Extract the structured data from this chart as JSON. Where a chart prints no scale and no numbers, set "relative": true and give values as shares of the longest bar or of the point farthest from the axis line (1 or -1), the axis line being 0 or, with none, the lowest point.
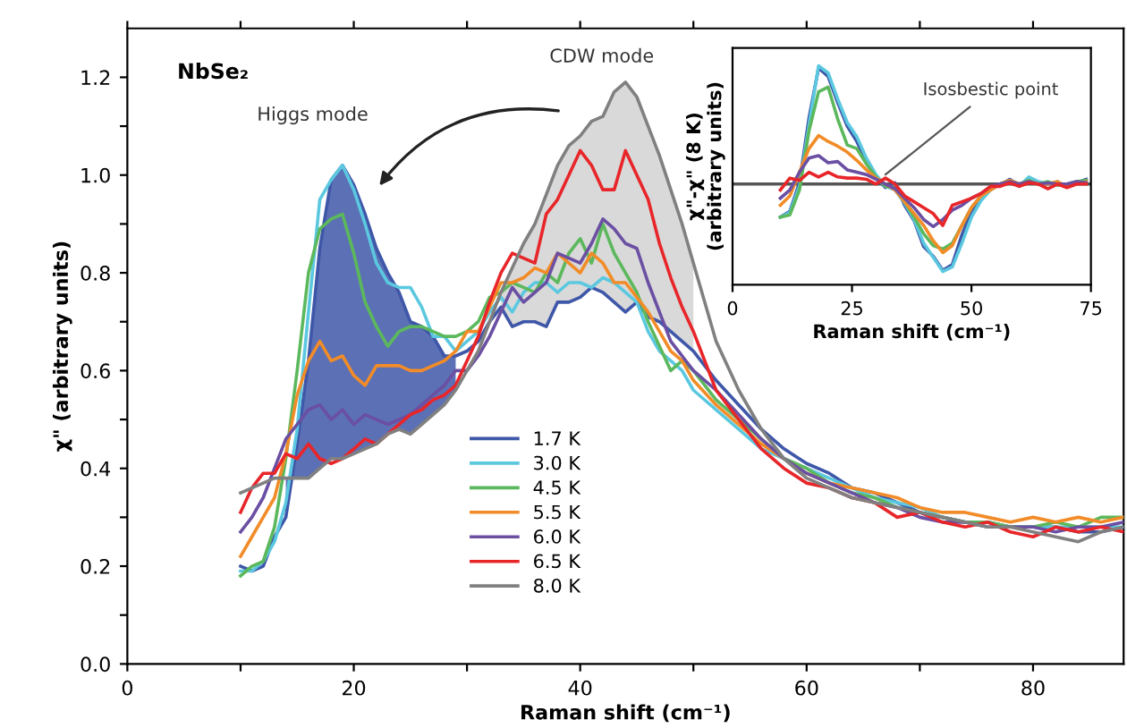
{
  "chart_data": [
    {
      "type": "line",
      "xlabel": "Raman shift (cm⁻¹)",
      "ylabel": "χ\" (arbitrary units)",
      "xlim": [
        0,
        88
      ],
      "ylim": [
        0,
        1.3
      ],
      "xticks": [
        0,
        {
          "value": 10,
          "label": null
        },
        20,
        {
          "value": 30,
          "label": null
        },
        40,
        {
          "value": 50,
          "label": null
        },
        60,
        {
          "value": 70,
          "label": null
        },
        80
      ],
      "yticks": [
        {
          "value": 0,
          "label": "0.0"
        },
        {
          "value": 0.1,
          "label": null
        },
        {
          "value": 0.2,
          "label": "0.2"
        },
        {
          "value": 0.3,
          "label": null
        },
        {
          "value": 0.4,
          "label": "0.4"
        },
        {
          "value": 0.5,
          "label": null
        },
        {
          "value": 0.6,
          "label": "0.6"
        },
        {
          "value": 0.7,
          "label": null
        },
        {
          "value": 0.8,
          "label": "0.8"
        },
        {
          "value": 0.9,
          "label": null
        },
        {
          "value": 1.0,
          "label": "1.0"
        },
        {
          "value": 1.1,
          "label": null
        },
        {
          "value": 1.2,
          "label": "1.2"
        }
      ],
      "grid": false,
      "legend": "bottom",
      "marker": "none",
      "line_style": "solid",
      "annotations": [
        "NbSe₂",
        {
          "text": "Higgs mode",
          "x": 19,
          "y": 1.02
        },
        {
          "text": "CDW mode",
          "x": 43,
          "y": 1.19
        }
      ],
      "x": [
        10,
        11,
        12,
        13,
        14,
        15,
        16,
        17,
        18,
        19,
        20,
        21,
        22,
        23,
        24,
        25,
        26,
        27,
        28,
        29,
        30,
        31,
        32,
        33,
        34,
        35,
        36,
        37,
        38,
        39,
        40,
        41,
        42,
        43,
        44,
        45,
        46,
        47,
        48,
        49,
        50,
        52,
        54,
        56,
        58,
        60,
        62,
        64,
        66,
        68,
        70,
        72,
        74,
        76,
        78,
        80,
        82,
        84,
        86,
        88
      ],
      "series": [
        {
          "name": "1.7 K",
          "color": "#3f57a8",
          "lower": [
            null,
            null,
            null,
            null,
            0.38,
            0.38,
            0.38,
            0.4,
            0.42,
            0.42,
            0.43,
            0.44,
            0.45,
            0.47,
            0.48,
            0.47,
            0.49,
            0.51,
            0.53,
            0.56,
            null,
            null,
            null,
            null,
            null,
            null,
            null,
            null,
            null,
            null,
            null,
            null,
            null,
            null,
            null,
            null,
            null,
            null,
            null,
            null,
            null,
            null,
            null,
            null,
            null,
            null,
            null,
            null,
            null,
            null,
            null,
            null,
            null,
            null,
            null,
            null,
            null,
            null,
            null,
            null
          ],
          "upper": [
            null,
            null,
            null,
            null,
            0.3,
            0.45,
            0.62,
            0.85,
            0.99,
            1.02,
            0.98,
            0.92,
            0.85,
            0.8,
            0.76,
            0.7,
            0.69,
            0.67,
            0.63,
            0.63,
            null,
            null,
            null,
            null,
            null,
            null,
            null,
            null,
            null,
            null,
            null,
            null,
            null,
            null,
            null,
            null,
            null,
            null,
            null,
            null,
            null,
            null,
            null,
            null,
            null,
            null,
            null,
            null,
            null,
            null,
            null,
            null,
            null,
            null,
            null,
            null,
            null,
            null,
            null,
            null
          ],
          "values": [
            0.2,
            0.19,
            0.2,
            0.26,
            0.3,
            0.45,
            0.62,
            0.85,
            0.99,
            1.02,
            0.98,
            0.92,
            0.85,
            0.8,
            0.76,
            0.7,
            0.69,
            0.67,
            0.63,
            0.63,
            0.64,
            0.66,
            0.7,
            0.73,
            0.69,
            0.7,
            0.7,
            0.69,
            0.74,
            0.74,
            0.75,
            0.77,
            0.76,
            0.74,
            0.72,
            0.74,
            0.71,
            0.7,
            0.68,
            0.66,
            0.64,
            0.58,
            0.53,
            0.48,
            0.44,
            0.41,
            0.39,
            0.36,
            0.35,
            0.33,
            0.31,
            0.3,
            0.29,
            0.29,
            0.28,
            0.28,
            0.28,
            0.27,
            0.27,
            0.28
          ]
        },
        {
          "name": "3.0 K",
          "color": "#5bc8e0",
          "values": [
            0.19,
            0.19,
            0.21,
            0.25,
            0.33,
            0.48,
            0.72,
            0.95,
            0.99,
            1.02,
            0.97,
            0.9,
            0.82,
            0.78,
            0.77,
            0.77,
            0.73,
            0.67,
            0.67,
            0.64,
            0.66,
            0.68,
            0.72,
            0.75,
            0.72,
            0.76,
            0.78,
            0.78,
            0.76,
            0.78,
            0.78,
            0.77,
            0.79,
            0.78,
            0.76,
            0.74,
            0.68,
            0.64,
            0.62,
            0.6,
            0.56,
            0.52,
            0.48,
            0.44,
            0.42,
            0.4,
            0.38,
            0.36,
            0.34,
            0.33,
            0.32,
            0.3,
            0.29,
            0.29,
            0.28,
            0.28,
            0.28,
            0.28,
            0.28,
            0.28
          ]
        },
        {
          "name": "4.5 K",
          "color": "#5cb85c",
          "values": [
            0.18,
            0.2,
            0.21,
            0.28,
            0.42,
            0.6,
            0.8,
            0.89,
            0.91,
            0.92,
            0.84,
            0.74,
            0.69,
            0.65,
            0.68,
            0.69,
            0.69,
            0.68,
            0.67,
            0.67,
            0.68,
            0.7,
            0.75,
            0.76,
            0.78,
            0.77,
            0.76,
            0.8,
            0.78,
            0.84,
            0.87,
            0.82,
            0.9,
            0.84,
            0.8,
            0.76,
            0.7,
            0.65,
            0.6,
            0.62,
            0.6,
            0.54,
            0.5,
            0.46,
            0.42,
            0.4,
            0.37,
            0.35,
            0.34,
            0.32,
            0.31,
            0.3,
            0.29,
            0.29,
            0.28,
            0.28,
            0.29,
            0.28,
            0.3,
            0.3
          ]
        },
        {
          "name": "5.5 K",
          "color": "#f28c28",
          "values": [
            0.22,
            0.26,
            0.3,
            0.34,
            0.43,
            0.55,
            0.62,
            0.66,
            0.62,
            0.63,
            0.59,
            0.57,
            0.61,
            0.61,
            0.61,
            0.6,
            0.6,
            0.61,
            0.62,
            0.64,
            0.68,
            0.68,
            0.73,
            0.78,
            0.78,
            0.79,
            0.81,
            0.8,
            0.84,
            0.82,
            0.8,
            0.84,
            0.82,
            0.78,
            0.78,
            0.75,
            0.72,
            0.68,
            0.64,
            0.62,
            0.58,
            0.53,
            0.49,
            0.45,
            0.42,
            0.39,
            0.37,
            0.36,
            0.35,
            0.34,
            0.32,
            0.31,
            0.31,
            0.3,
            0.29,
            0.3,
            0.29,
            0.3,
            0.29,
            0.3
          ]
        },
        {
          "name": "6.0 K",
          "color": "#6a4fa3",
          "values": [
            0.27,
            0.3,
            0.34,
            0.4,
            0.46,
            0.49,
            0.52,
            0.53,
            0.5,
            0.52,
            0.49,
            0.51,
            0.5,
            0.49,
            0.5,
            0.51,
            0.53,
            0.55,
            0.57,
            0.6,
            0.6,
            0.63,
            0.67,
            0.72,
            0.77,
            0.74,
            0.76,
            0.78,
            0.84,
            0.83,
            0.82,
            0.86,
            0.91,
            0.89,
            0.86,
            0.85,
            0.78,
            0.72,
            0.66,
            0.63,
            0.6,
            0.56,
            0.51,
            0.46,
            0.42,
            0.39,
            0.37,
            0.35,
            0.33,
            0.32,
            0.3,
            0.29,
            0.29,
            0.28,
            0.28,
            0.28,
            0.27,
            0.28,
            0.28,
            0.29
          ]
        },
        {
          "name": "6.5 K",
          "color": "#e8262a",
          "values": [
            0.31,
            0.36,
            0.39,
            0.39,
            0.43,
            0.42,
            0.45,
            0.42,
            0.41,
            0.42,
            0.44,
            0.46,
            0.45,
            0.47,
            0.49,
            0.51,
            0.52,
            0.54,
            0.55,
            0.57,
            0.62,
            0.67,
            0.74,
            0.8,
            0.84,
            0.83,
            0.82,
            0.92,
            0.95,
            1.0,
            1.05,
            1.02,
            0.97,
            0.97,
            1.05,
            1.0,
            0.95,
            0.86,
            0.79,
            0.73,
            0.68,
            0.56,
            0.5,
            0.44,
            0.4,
            0.37,
            0.36,
            0.34,
            0.33,
            0.3,
            0.31,
            0.29,
            0.28,
            0.29,
            0.27,
            0.26,
            0.28,
            0.27,
            0.28,
            0.27
          ]
        },
        {
          "name": "8.0 K",
          "color": "#808080",
          "lower": [
            null,
            null,
            null,
            null,
            null,
            null,
            null,
            null,
            null,
            null,
            null,
            null,
            null,
            null,
            null,
            null,
            null,
            null,
            null,
            null,
            null,
            null,
            null,
            0.73,
            0.69,
            0.7,
            0.7,
            0.69,
            0.74,
            0.74,
            0.75,
            0.77,
            0.76,
            0.74,
            0.72,
            0.74,
            0.71,
            0.7,
            0.68,
            0.66,
            0.64,
            null,
            null,
            null,
            null,
            null,
            null,
            null,
            null,
            null,
            null,
            null,
            null,
            null,
            null,
            null,
            null,
            null,
            null,
            null
          ],
          "upper": [
            null,
            null,
            null,
            null,
            null,
            null,
            null,
            null,
            null,
            null,
            null,
            null,
            null,
            null,
            null,
            null,
            null,
            null,
            null,
            null,
            null,
            null,
            null,
            0.76,
            0.81,
            0.86,
            0.9,
            0.96,
            1.02,
            1.06,
            1.08,
            1.11,
            1.12,
            1.17,
            1.19,
            1.16,
            1.1,
            1.04,
            0.97,
            0.9,
            0.82,
            null,
            null,
            null,
            null,
            null,
            null,
            null,
            null,
            null,
            null,
            null,
            null,
            null,
            null,
            null,
            null,
            null,
            null,
            null
          ],
          "values": [
            0.35,
            0.36,
            0.37,
            0.38,
            0.38,
            0.38,
            0.38,
            0.4,
            0.42,
            0.42,
            0.43,
            0.44,
            0.45,
            0.47,
            0.48,
            0.47,
            0.49,
            0.51,
            0.53,
            0.56,
            0.6,
            0.64,
            0.7,
            0.76,
            0.81,
            0.86,
            0.9,
            0.96,
            1.02,
            1.06,
            1.08,
            1.11,
            1.12,
            1.17,
            1.19,
            1.16,
            1.1,
            1.04,
            0.97,
            0.9,
            0.82,
            0.66,
            0.56,
            0.48,
            0.42,
            0.38,
            0.36,
            0.34,
            0.33,
            0.32,
            0.31,
            0.3,
            0.29,
            0.28,
            0.28,
            0.27,
            0.26,
            0.25,
            0.27,
            0.28
          ]
        }
      ]
    },
    {
      "type": "line",
      "relative": true,
      "xlabel": "Raman shift (cm⁻¹)",
      "ylabel": "χ\"-χ\" (8 K)\n(arbitrary units)",
      "xlim": [
        0,
        75
      ],
      "xticks": [
        0,
        25,
        50,
        75
      ],
      "marker": "none",
      "line_style": "solid",
      "legend": false,
      "grid": false,
      "annotations": [
        {
          "text": "Isosbestic point",
          "x": 32,
          "y": 0
        }
      ],
      "x": [
        10,
        12,
        14,
        16,
        18,
        20,
        22,
        24,
        26,
        28,
        30,
        32,
        34,
        36,
        38,
        40,
        42,
        44,
        46,
        48,
        50,
        52,
        54,
        56,
        58,
        60,
        62,
        64,
        66,
        68,
        70,
        72,
        74
      ],
      "series": [
        {
          "color": "#3f57a8",
          "values": [
            -0.28,
            -0.23,
            0.01,
            0.56,
            0.98,
            0.91,
            0.69,
            0.49,
            0.36,
            0.19,
            0.06,
            -0.03,
            0.01,
            -0.18,
            -0.31,
            -0.53,
            -0.61,
            -0.73,
            -0.68,
            -0.43,
            -0.23,
            -0.11,
            -0.03,
            -0.01,
            0.04,
            -0.01,
            0.04,
            0.01,
            0,
            0.01,
            -0.02,
            0.01,
            0.04
          ]
        },
        {
          "color": "#5bc8e0",
          "values": [
            -0.28,
            -0.24,
            -0.02,
            0.5,
            1.0,
            0.94,
            0.72,
            0.52,
            0.4,
            0.22,
            0.08,
            -0.02,
            -0.05,
            -0.16,
            -0.3,
            -0.5,
            -0.62,
            -0.74,
            -0.7,
            -0.5,
            -0.28,
            -0.14,
            -0.05,
            0,
            0.03,
            -0.02,
            0.06,
            0.02,
            0,
            0.02,
            null,
            null,
            null
          ]
        },
        {
          "color": "#5cb85c",
          "values": [
            -0.28,
            -0.26,
            -0.05,
            0.45,
            0.78,
            0.82,
            0.55,
            0.33,
            0.3,
            0.17,
            0.06,
            -0.02,
            -0.03,
            -0.15,
            -0.28,
            -0.42,
            -0.52,
            -0.55,
            -0.5,
            -0.35,
            -0.2,
            -0.1,
            -0.04,
            0,
            0.03,
            0,
            0.03,
            0,
            0.02,
            -0.01,
            0,
            0.02,
            0.03
          ]
        },
        {
          "color": "#f28c28",
          "values": [
            -0.18,
            -0.1,
            0.1,
            0.3,
            0.41,
            0.36,
            0.32,
            0.27,
            0.2,
            0.12,
            0.05,
            0,
            -0.05,
            -0.15,
            -0.25,
            -0.35,
            -0.48,
            -0.58,
            -0.52,
            -0.35,
            -0.2,
            -0.1,
            -0.05,
            0,
            0.03,
            0,
            0.02,
            0,
            0,
            0.02,
            -0.02,
            0,
            0.02
          ]
        },
        {
          "color": "#6a4fa3",
          "values": [
            -0.12,
            -0.05,
            0.1,
            0.22,
            0.24,
            0.18,
            0.19,
            0.12,
            0.1,
            0.08,
            0.04,
            0,
            -0.04,
            -0.12,
            -0.2,
            -0.3,
            -0.36,
            -0.3,
            -0.22,
            -0.18,
            -0.12,
            -0.08,
            -0.02,
            0,
            0.02,
            0,
            0.02,
            0,
            0.01,
            0,
            0,
            0.02,
            0.01
          ]
        },
        {
          "color": "#e8262a",
          "values": [
            -0.05,
            0.05,
            0.03,
            0.1,
            0.06,
            0.1,
            0.06,
            0.05,
            0.05,
            0.04,
            0,
            0.05,
            0,
            -0.1,
            -0.15,
            -0.2,
            -0.25,
            -0.35,
            -0.18,
            -0.15,
            -0.12,
            -0.08,
            -0.02,
            -0.02,
            0.01,
            -0.02,
            0.01,
            0,
            -0.04,
            0,
            -0.03,
            0,
            0
          ]
        }
      ]
    }
  ]
}
